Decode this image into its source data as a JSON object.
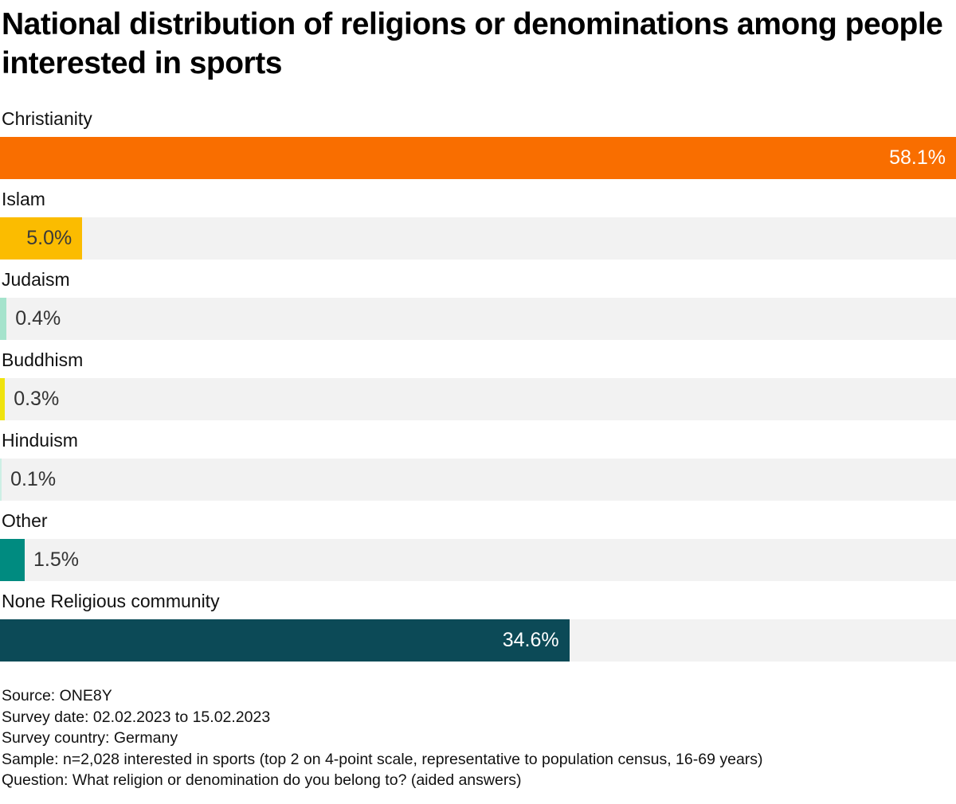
{
  "title": "National distribution of religions or denominations among people interested in sports",
  "chart_data": {
    "type": "bar",
    "orientation": "horizontal",
    "title": "National distribution of religions or denominations among people interested in sports",
    "categories": [
      "Christianity",
      "Islam",
      "Judaism",
      "Buddhism",
      "Hinduism",
      "Other",
      "None Religious community"
    ],
    "values": [
      58.1,
      5.0,
      0.4,
      0.3,
      0.1,
      1.5,
      34.6
    ],
    "value_labels": [
      "58.1%",
      "5.0%",
      "0.4%",
      "0.3%",
      "0.1%",
      "1.5%",
      "34.6%"
    ],
    "unit": "%",
    "xlim": [
      0,
      58.1
    ],
    "grid": false,
    "legend": false,
    "bar_colors": [
      "#F96E00",
      "#FBBC00",
      "#A5E3CC",
      "#EFE30E",
      "#CDEFE5",
      "#008B80",
      "#0C4A57"
    ],
    "value_label_inside": [
      true,
      true,
      false,
      false,
      false,
      false,
      true
    ],
    "value_label_colors": [
      "#FFFFFF",
      "#3A3A3A",
      "#333333",
      "#333333",
      "#333333",
      "#333333",
      "#FFFFFF"
    ],
    "track_color": "#F2F2F2"
  },
  "footer": {
    "lines": [
      "Source: ONE8Y",
      "Survey date: 02.02.2023 to 15.02.2023",
      "Survey country: Germany",
      "Sample: n=2,028 interested in sports (top 2 on 4-point scale, representative to population census, 16-69 years)",
      "Question: What religion or denomination do you belong to? (aided answers)"
    ]
  }
}
